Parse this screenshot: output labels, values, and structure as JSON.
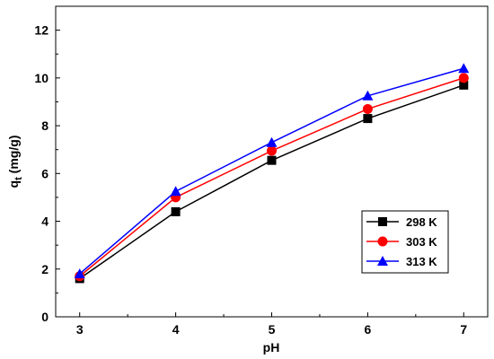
{
  "chart_data": {
    "type": "line",
    "xlabel": "pH",
    "ylabel": "q",
    "ylabel_sub": "t",
    "ylabel_unit": " (mg/g)",
    "xlim": [
      2.75,
      7.25
    ],
    "ylim": [
      0,
      13
    ],
    "xticks": [
      3,
      4,
      5,
      6,
      7
    ],
    "yticks": [
      0,
      2,
      4,
      6,
      8,
      10,
      12
    ],
    "grid": false,
    "legend_position": "right",
    "x": [
      3,
      4,
      5,
      6,
      7
    ],
    "series": [
      {
        "name": "298 K",
        "color": "#000000",
        "marker": "square",
        "values": [
          1.6,
          4.4,
          6.55,
          8.3,
          9.7
        ]
      },
      {
        "name": "303 K",
        "color": "#ff0000",
        "marker": "circle",
        "values": [
          1.7,
          5.0,
          6.95,
          8.7,
          10.0
        ]
      },
      {
        "name": "313 K",
        "color": "#0000ff",
        "marker": "triangle",
        "values": [
          1.8,
          5.25,
          7.3,
          9.25,
          10.4
        ]
      }
    ]
  }
}
